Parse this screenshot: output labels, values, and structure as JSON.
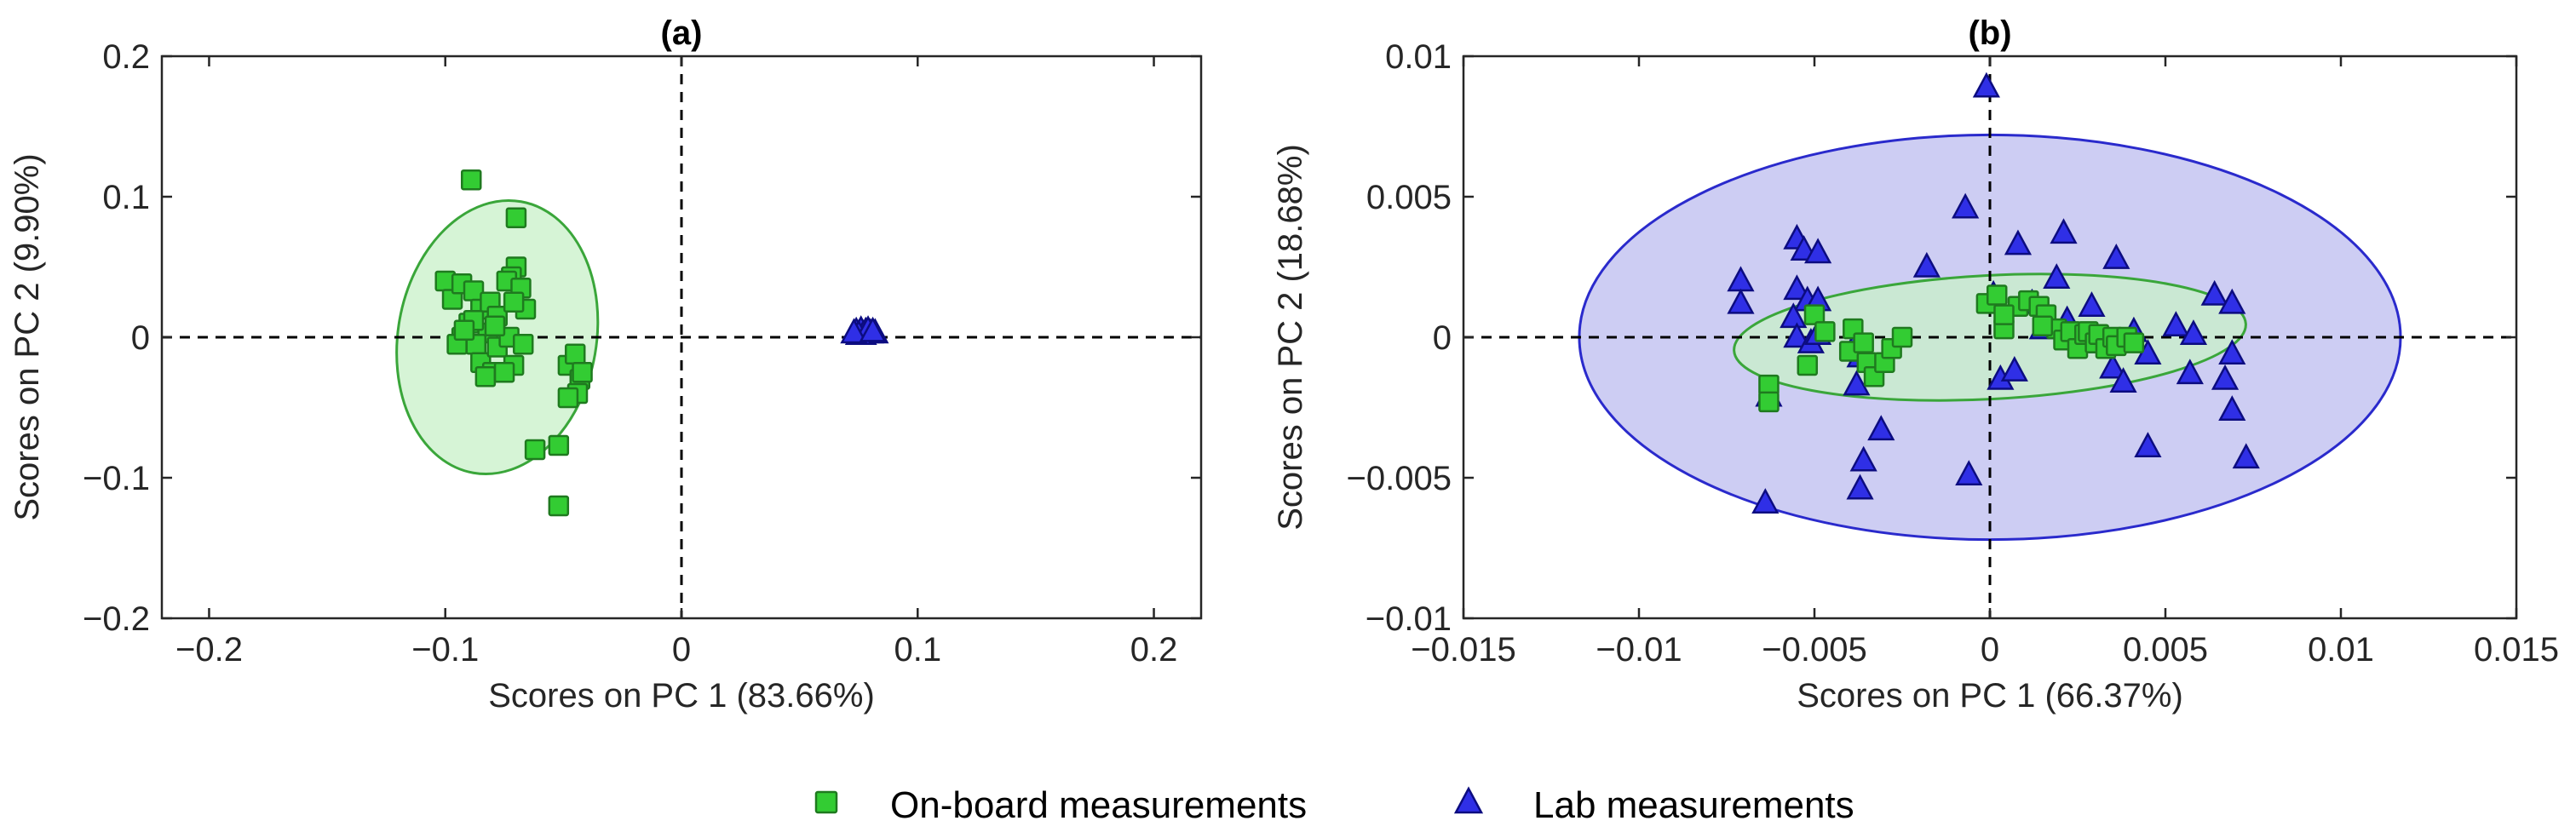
{
  "colors": {
    "onboard_marker": "#33cc33",
    "onboard_edge": "#1f7a1f",
    "onboard_ellipse_fill": "#c8f0c8",
    "onboard_ellipse_edge": "#3aa63a",
    "lab_marker": "#2f2fe6",
    "lab_edge": "#0c0c80",
    "lab_ellipse_fill": "#c8c8f2",
    "lab_ellipse_edge": "#2a2acc",
    "axis": "#262626"
  },
  "legend": {
    "placement": "bottom-center",
    "items": [
      {
        "label": "On-board measurements",
        "marker": "square-icon"
      },
      {
        "label": "Lab measurements",
        "marker": "triangle-icon"
      }
    ]
  },
  "chart_data": [
    {
      "type": "scatter",
      "title": "(a)",
      "xlabel": "Scores on PC 1 (83.66%)",
      "ylabel": "Scores on PC 2 (9.90%)",
      "xlim": [
        -0.22,
        0.22
      ],
      "ylim": [
        -0.2,
        0.2
      ],
      "xticks": [
        -0.2,
        -0.1,
        0,
        0.1,
        0.2
      ],
      "xtick_labels": [
        "−0.2",
        "−0.1",
        "0",
        "0.1",
        "0.2"
      ],
      "yticks": [
        -0.2,
        -0.1,
        0,
        0.1,
        0.2
      ],
      "ytick_labels": [
        "−0.2",
        "−0.1",
        "0",
        "0.1",
        "0.2"
      ],
      "grid": false,
      "reference_lines": {
        "x": 0,
        "y": 0,
        "style": "dashed"
      },
      "ellipses": [
        {
          "series": "On-board measurements",
          "cx": -0.078,
          "cy": 0.0,
          "rx": 0.042,
          "ry": 0.098,
          "angle_deg": -10
        }
      ],
      "series": [
        {
          "name": "On-board measurements",
          "marker": "square",
          "points": [
            [
              -0.089,
              0.112
            ],
            [
              -0.07,
              0.085
            ],
            [
              -0.1,
              0.04
            ],
            [
              -0.097,
              0.027
            ],
            [
              -0.093,
              0.038
            ],
            [
              -0.088,
              0.033
            ],
            [
              -0.085,
              0.02
            ],
            [
              -0.081,
              0.025
            ],
            [
              -0.078,
              0.015
            ],
            [
              -0.082,
              0.003
            ],
            [
              -0.09,
              0.01
            ],
            [
              -0.093,
              0.0
            ],
            [
              -0.095,
              -0.005
            ],
            [
              -0.087,
              -0.005
            ],
            [
              -0.085,
              -0.018
            ],
            [
              -0.08,
              -0.025
            ],
            [
              -0.083,
              -0.028
            ],
            [
              -0.078,
              -0.007
            ],
            [
              -0.07,
              0.05
            ],
            [
              -0.072,
              0.043
            ],
            [
              -0.074,
              0.04
            ],
            [
              -0.068,
              0.035
            ],
            [
              -0.066,
              0.02
            ],
            [
              -0.071,
              0.025
            ],
            [
              -0.073,
              0.0
            ],
            [
              -0.067,
              -0.005
            ],
            [
              -0.071,
              -0.02
            ],
            [
              -0.075,
              -0.025
            ],
            [
              -0.062,
              -0.08
            ],
            [
              -0.052,
              -0.077
            ],
            [
              -0.052,
              -0.12
            ],
            [
              -0.048,
              -0.02
            ],
            [
              -0.045,
              -0.012
            ],
            [
              -0.043,
              -0.03
            ],
            [
              -0.044,
              -0.04
            ],
            [
              -0.048,
              -0.043
            ],
            [
              -0.042,
              -0.025
            ],
            [
              -0.088,
              0.012
            ],
            [
              -0.092,
              0.005
            ],
            [
              -0.079,
              0.008
            ]
          ]
        },
        {
          "name": "Lab measurements",
          "marker": "triangle",
          "points": [
            [
              0.074,
              0.004
            ],
            [
              0.076,
              0.005
            ],
            [
              0.078,
              0.004
            ],
            [
              0.08,
              0.003
            ],
            [
              0.077,
              0.002
            ],
            [
              0.082,
              0.003
            ],
            [
              0.075,
              0.002
            ],
            [
              0.079,
              0.005
            ],
            [
              0.073,
              0.003
            ],
            [
              0.081,
              0.004
            ]
          ]
        }
      ]
    },
    {
      "type": "scatter",
      "title": "(b)",
      "xlabel": "Scores on PC 1 (66.37%)",
      "ylabel": "Scores on PC 2 (18.68%)",
      "xlim": [
        -0.015,
        0.015
      ],
      "ylim": [
        -0.01,
        0.01
      ],
      "xticks": [
        -0.015,
        -0.01,
        -0.005,
        0,
        0.005,
        0.01,
        0.015
      ],
      "xtick_labels": [
        "−0.015",
        "−0.01",
        "−0.005",
        "0",
        "0.005",
        "0.01",
        "0.015"
      ],
      "yticks": [
        -0.01,
        -0.005,
        0,
        0.005,
        0.01
      ],
      "ytick_labels": [
        "−0.01",
        "−0.005",
        "0",
        "0.005",
        "0.01"
      ],
      "grid": false,
      "reference_lines": {
        "x": 0,
        "y": 0,
        "style": "dashed"
      },
      "ellipses": [
        {
          "series": "Lab measurements",
          "cx": 0.0,
          "cy": 0.0,
          "rx": 0.0117,
          "ry": 0.0072,
          "angle_deg": 0
        },
        {
          "series": "On-board measurements",
          "cx": 0.0,
          "cy": 0.0,
          "rx": 0.0073,
          "ry": 0.0022,
          "angle_deg": 3
        }
      ],
      "series": [
        {
          "name": "Lab measurements",
          "marker": "triangle",
          "points": [
            [
              -0.0001,
              0.0089
            ],
            [
              -0.0007,
              0.0046
            ],
            [
              0.0008,
              0.0033
            ],
            [
              0.0021,
              0.0037
            ],
            [
              0.0036,
              0.0028
            ],
            [
              -0.0055,
              0.0035
            ],
            [
              -0.0053,
              0.0031
            ],
            [
              -0.0049,
              0.003
            ],
            [
              -0.0071,
              0.002
            ],
            [
              -0.0071,
              0.0012
            ],
            [
              -0.0055,
              0.0017
            ],
            [
              -0.0052,
              0.0013
            ],
            [
              -0.0049,
              0.0013
            ],
            [
              -0.0056,
              0.0007
            ],
            [
              -0.0055,
              0.0
            ],
            [
              -0.0051,
              -0.0002
            ],
            [
              -0.0049,
              0.0001
            ],
            [
              -0.0039,
              -0.0004
            ],
            [
              -0.0038,
              -0.0017
            ],
            [
              -0.0037,
              -0.0007
            ],
            [
              -0.0018,
              0.0025
            ],
            [
              -0.0031,
              -0.0033
            ],
            [
              -0.0036,
              -0.0044
            ],
            [
              -0.0037,
              -0.0054
            ],
            [
              -0.0063,
              -0.0021
            ],
            [
              -0.0064,
              -0.0059
            ],
            [
              -0.0006,
              -0.0049
            ],
            [
              0.0003,
              -0.0015
            ],
            [
              0.0007,
              -0.0012
            ],
            [
              0.0001,
              0.0015
            ],
            [
              0.0012,
              0.0012
            ],
            [
              0.0015,
              0.0003
            ],
            [
              0.0019,
              0.0021
            ],
            [
              0.0022,
              0.0006
            ],
            [
              0.0029,
              0.0011
            ],
            [
              0.0032,
              -0.0002
            ],
            [
              0.0035,
              -0.0011
            ],
            [
              0.0038,
              -0.0016
            ],
            [
              0.0041,
              0.0002
            ],
            [
              0.0045,
              -0.0006
            ],
            [
              0.0045,
              -0.0039
            ],
            [
              0.0053,
              0.0004
            ],
            [
              0.0058,
              0.0001
            ],
            [
              0.0057,
              -0.0013
            ],
            [
              0.0064,
              0.0015
            ],
            [
              0.0067,
              -0.0015
            ],
            [
              0.0069,
              0.0012
            ],
            [
              0.0069,
              -0.0006
            ],
            [
              0.0069,
              -0.0026
            ],
            [
              0.0073,
              -0.0043
            ]
          ]
        },
        {
          "name": "On-board measurements",
          "marker": "square",
          "points": [
            [
              -0.0063,
              -0.0017
            ],
            [
              -0.0063,
              -0.0023
            ],
            [
              -0.0052,
              -0.001
            ],
            [
              -0.005,
              0.0008
            ],
            [
              -0.0047,
              0.0002
            ],
            [
              -0.0039,
              0.0003
            ],
            [
              -0.004,
              -0.0005
            ],
            [
              -0.0036,
              -0.0002
            ],
            [
              -0.0035,
              -0.0009
            ],
            [
              -0.0033,
              -0.0014
            ],
            [
              -0.003,
              -0.0009
            ],
            [
              -0.0028,
              -0.0004
            ],
            [
              -0.0025,
              0.0
            ],
            [
              -0.0001,
              0.0012
            ],
            [
              0.0002,
              0.0015
            ],
            [
              0.0004,
              0.0003
            ],
            [
              0.0008,
              0.0011
            ],
            [
              0.0011,
              0.0013
            ],
            [
              0.0014,
              0.0011
            ],
            [
              0.0016,
              0.0008
            ],
            [
              0.0019,
              0.0003
            ],
            [
              0.0021,
              -0.0001
            ],
            [
              0.0023,
              0.0002
            ],
            [
              0.0025,
              -0.0004
            ],
            [
              0.0027,
              0.0001
            ],
            [
              0.0028,
              0.0002
            ],
            [
              0.003,
              -0.0002
            ],
            [
              0.0031,
              0.0001
            ],
            [
              0.0033,
              -0.0004
            ],
            [
              0.0035,
              0.0
            ],
            [
              0.0036,
              -0.0003
            ],
            [
              0.0039,
              0.0
            ],
            [
              0.0041,
              -0.0002
            ],
            [
              0.0004,
              0.0008
            ],
            [
              0.0015,
              0.0004
            ]
          ]
        }
      ]
    }
  ]
}
